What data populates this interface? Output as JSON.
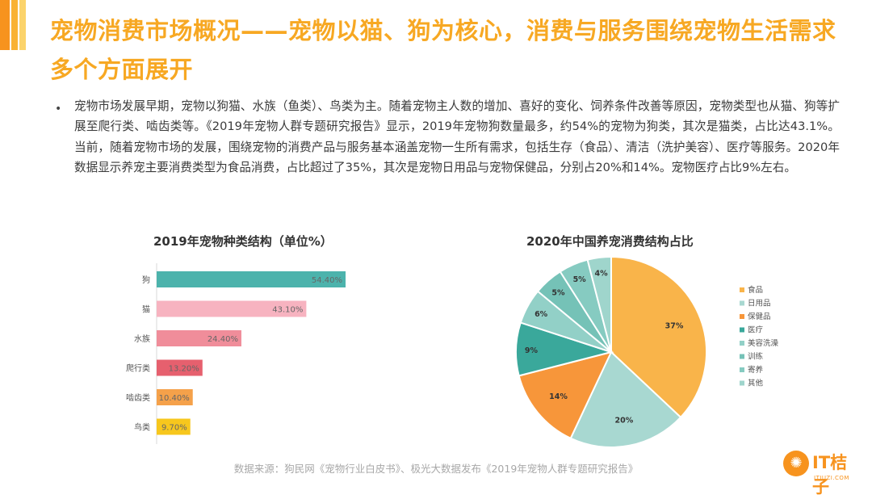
{
  "header": {
    "title": "宠物消费市场概况——宠物以猫、狗为核心，消费与服务围绕宠物生活需求多个方面展开"
  },
  "body": {
    "bullet": "•",
    "paragraph": "宠物市场发展早期，宠物以狗猫、水族（鱼类）、鸟类为主。随着宠物主人数的增加、喜好的变化、饲养条件改善等原因，宠物类型也从猫、狗等扩展至爬行类、啮齿类等。《2019年宠物人群专题研究报告》显示，2019年宠物狗数量最多，约54%的宠物为狗类，其次是猫类，占比达43.1%。当前，随着宠物市场的发展，围绕宠物的消费产品与服务基本涵盖宠物一生所有需求，包括生存（食品）、清洁（洗护美容）、医疗等服务。2020年数据显示养宠主要消费类型为食品消费，占比超过了35%，其次是宠物日用品与宠物保健品，分别占20%和14%。宠物医疗占比9%左右。"
  },
  "chart_data": [
    {
      "type": "bar",
      "orientation": "horizontal",
      "title": "2019年宠物种类结构（单位%）",
      "categories": [
        "狗",
        "猫",
        "水族",
        "爬行类",
        "啮齿类",
        "鸟类"
      ],
      "values": [
        54.4,
        43.1,
        24.4,
        13.2,
        10.4,
        9.7
      ],
      "labels": [
        "54.40%",
        "43.10%",
        "24.40%",
        "13.20%",
        "10.40%",
        "9.70%"
      ],
      "colors": [
        "#4cb3ac",
        "#f7b3c0",
        "#f08d9a",
        "#e6606e",
        "#f5a14a",
        "#f7c71d"
      ],
      "xlim": [
        0,
        54.4
      ],
      "grid": false
    },
    {
      "type": "pie",
      "title": "2020年中国养宠消费结构占比",
      "categories": [
        "食品",
        "日用品",
        "保健品",
        "医疗",
        "美容洗澡",
        "训练",
        "寄养",
        "其他"
      ],
      "values": [
        37,
        20,
        14,
        9,
        6,
        5,
        5,
        4
      ],
      "labels": [
        "37%",
        "20%",
        "14%",
        "9%",
        "6%",
        "5%",
        "5%",
        "4%"
      ],
      "colors": [
        "#f9b44a",
        "#a8d8d1",
        "#f7963a",
        "#3aa89b",
        "#92d0c7",
        "#75c2b7",
        "#86cbc1",
        "#9fd5cc"
      ],
      "legend": "right"
    }
  ],
  "footer": {
    "source": "数据来源：狗民网《宠物行业白皮书》、极光大数据发布《2019年宠物人群专题研究报告》"
  },
  "logo": {
    "text": "IT桔子",
    "sub": "ITJUZI.COM",
    "icon": "orange-slice-icon"
  }
}
